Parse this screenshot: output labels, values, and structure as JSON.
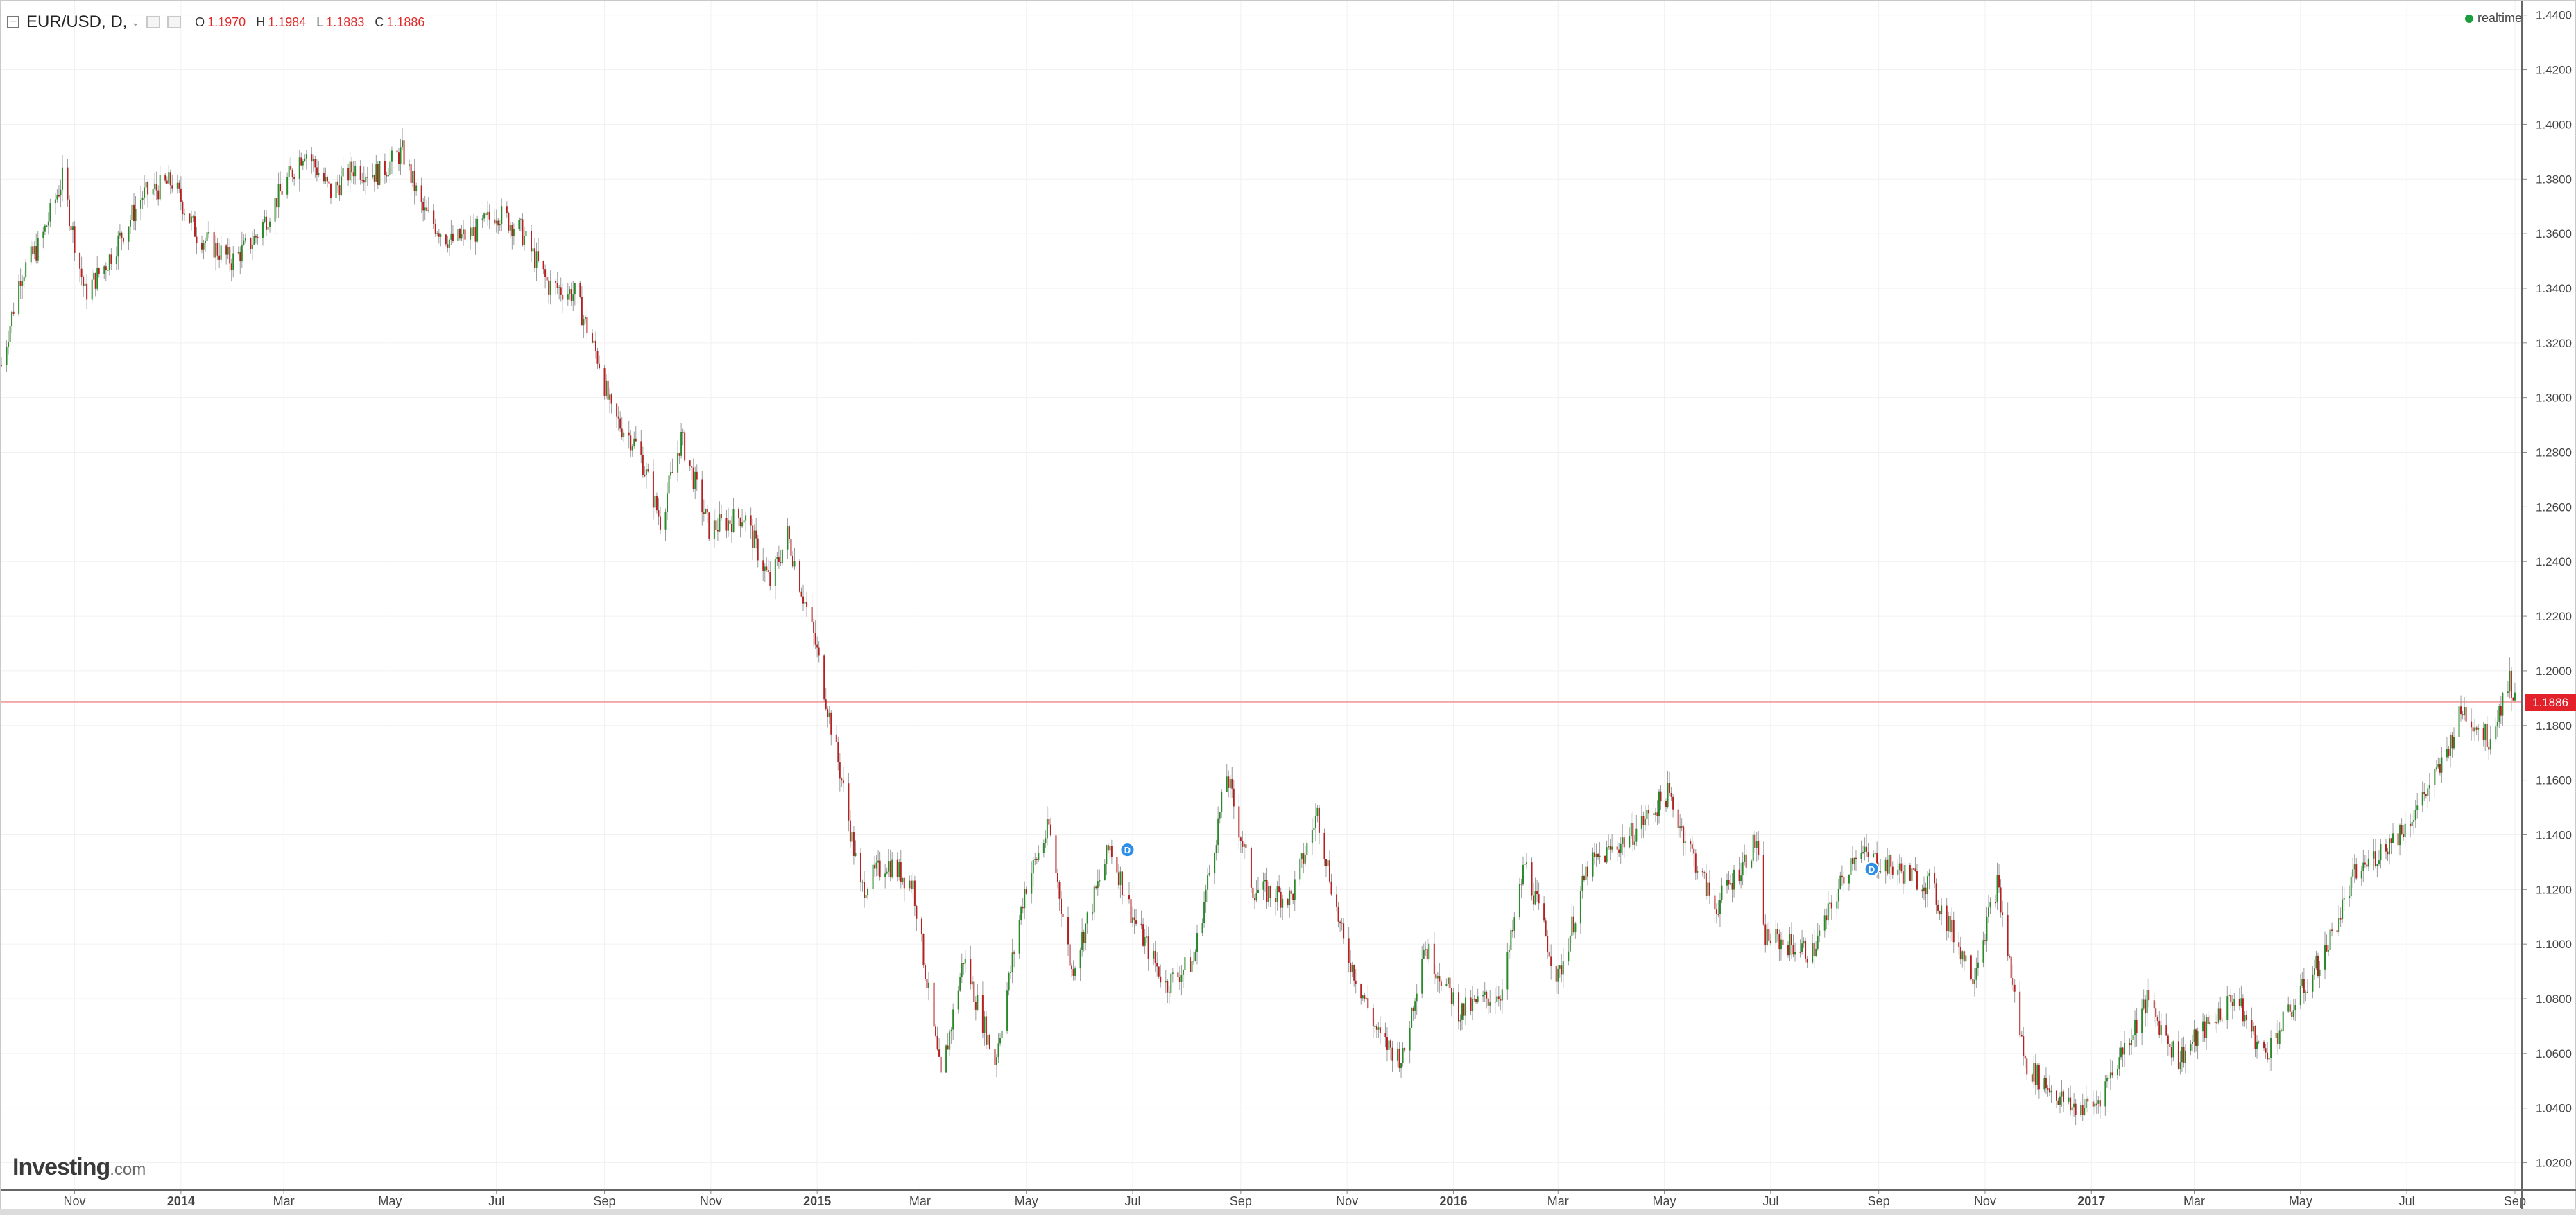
{
  "header": {
    "collapse_glyph": "−",
    "symbol": "EUR/USD, D,",
    "caret": "⌄",
    "ohlc": [
      {
        "key": "O",
        "value": "1.1970"
      },
      {
        "key": "H",
        "value": "1.1984"
      },
      {
        "key": "L",
        "value": "1.1883"
      },
      {
        "key": "C",
        "value": "1.1886"
      }
    ]
  },
  "realtime_label": "realtime",
  "logo": {
    "brand": "Investing",
    "tld": ".com"
  },
  "price_badge": "1.1886",
  "colors": {
    "up": "#2a8a2a",
    "down": "#b52020",
    "wick": "#9a9a9a",
    "price_line": "#f2a7a7",
    "price_badge": "#e3212b",
    "grid": "#f1f1f1",
    "marker": "#2f8fe8",
    "realtime_dot": "#1c9e3c"
  },
  "chart_data": {
    "type": "candlestick",
    "title": "EUR/USD, D,",
    "y_ticks": [
      "1.4400",
      "1.4200",
      "1.4000",
      "1.3800",
      "1.3600",
      "1.3400",
      "1.3200",
      "1.3000",
      "1.2800",
      "1.2600",
      "1.2400",
      "1.2200",
      "1.2000",
      "1.1800",
      "1.1600",
      "1.1400",
      "1.1200",
      "1.1000",
      "1.0800",
      "1.0600",
      "1.0400",
      "1.0200"
    ],
    "x_ticks": [
      "Nov",
      "2014",
      "Mar",
      "May",
      "Jul",
      "Sep",
      "Nov",
      "2015",
      "Mar",
      "May",
      "Jul",
      "Sep",
      "Nov",
      "2016",
      "Mar",
      "May",
      "Jul",
      "Sep",
      "Nov",
      "2017",
      "Mar",
      "May",
      "Jul",
      "Sep"
    ],
    "x_tick_dates": [
      "2013-11-01",
      "2014-01-01",
      "2014-03-01",
      "2014-05-01",
      "2014-07-01",
      "2014-09-01",
      "2014-11-01",
      "2015-01-01",
      "2015-03-01",
      "2015-05-01",
      "2015-07-01",
      "2015-09-01",
      "2015-11-01",
      "2016-01-01",
      "2016-03-01",
      "2016-05-01",
      "2016-07-01",
      "2016-09-01",
      "2016-11-01",
      "2017-01-01",
      "2017-03-01",
      "2017-05-01",
      "2017-07-01",
      "2017-09-01"
    ],
    "x_range": [
      "2013-09-20",
      "2017-09-05"
    ],
    "y_range": [
      1.01,
      1.445
    ],
    "last_price": 1.1886,
    "ohlc_last": {
      "open": 1.197,
      "high": 1.1984,
      "low": 1.1883,
      "close": 1.1886
    },
    "grid": true,
    "markers": [
      {
        "date": "2015-06-28",
        "price": 1.1345,
        "label": "D"
      },
      {
        "date": "2016-08-28",
        "price": 1.1275,
        "label": "D"
      }
    ],
    "close_series": [
      [
        "2013-09-20",
        1.312
      ],
      [
        "2013-10-01",
        1.345
      ],
      [
        "2013-10-12",
        1.356
      ],
      [
        "2013-10-25",
        1.38
      ],
      [
        "2013-11-07",
        1.338
      ],
      [
        "2013-11-20",
        1.35
      ],
      [
        "2013-12-10",
        1.374
      ],
      [
        "2013-12-27",
        1.379
      ],
      [
        "2014-01-10",
        1.36
      ],
      [
        "2014-01-30",
        1.35
      ],
      [
        "2014-02-12",
        1.358
      ],
      [
        "2014-02-28",
        1.376
      ],
      [
        "2014-03-13",
        1.391
      ],
      [
        "2014-03-28",
        1.375
      ],
      [
        "2014-04-10",
        1.384
      ],
      [
        "2014-04-25",
        1.382
      ],
      [
        "2014-05-08",
        1.39
      ],
      [
        "2014-05-20",
        1.368
      ],
      [
        "2014-06-05",
        1.357
      ],
      [
        "2014-06-20",
        1.361
      ],
      [
        "2014-07-01",
        1.368
      ],
      [
        "2014-07-15",
        1.361
      ],
      [
        "2014-07-31",
        1.341
      ],
      [
        "2014-08-15",
        1.338
      ],
      [
        "2014-08-29",
        1.313
      ],
      [
        "2014-09-05",
        1.294
      ],
      [
        "2014-09-20",
        1.282
      ],
      [
        "2014-10-03",
        1.255
      ],
      [
        "2014-10-15",
        1.285
      ],
      [
        "2014-10-31",
        1.252
      ],
      [
        "2014-11-20",
        1.257
      ],
      [
        "2014-12-05",
        1.232
      ],
      [
        "2014-12-15",
        1.25
      ],
      [
        "2014-12-31",
        1.21
      ],
      [
        "2015-01-15",
        1.16
      ],
      [
        "2015-01-26",
        1.12
      ],
      [
        "2015-02-10",
        1.13
      ],
      [
        "2015-02-25",
        1.122
      ],
      [
        "2015-03-13",
        1.05
      ],
      [
        "2015-03-26",
        1.095
      ],
      [
        "2015-04-13",
        1.057
      ],
      [
        "2015-04-30",
        1.12
      ],
      [
        "2015-05-14",
        1.143
      ],
      [
        "2015-05-27",
        1.09
      ],
      [
        "2015-06-18",
        1.136
      ],
      [
        "2015-07-01",
        1.11
      ],
      [
        "2015-07-20",
        1.085
      ],
      [
        "2015-08-05",
        1.094
      ],
      [
        "2015-08-24",
        1.162
      ],
      [
        "2015-09-08",
        1.12
      ],
      [
        "2015-09-30",
        1.117
      ],
      [
        "2015-10-15",
        1.148
      ],
      [
        "2015-10-30",
        1.1
      ],
      [
        "2015-11-20",
        1.065
      ],
      [
        "2015-12-03",
        1.058
      ],
      [
        "2015-12-15",
        1.1
      ],
      [
        "2016-01-05",
        1.075
      ],
      [
        "2016-01-29",
        1.083
      ],
      [
        "2016-02-11",
        1.13
      ],
      [
        "2016-03-01",
        1.087
      ],
      [
        "2016-03-18",
        1.128
      ],
      [
        "2016-04-12",
        1.14
      ],
      [
        "2016-05-03",
        1.155
      ],
      [
        "2016-05-30",
        1.113
      ],
      [
        "2016-06-23",
        1.138
      ],
      [
        "2016-06-27",
        1.103
      ],
      [
        "2016-07-25",
        1.097
      ],
      [
        "2016-08-18",
        1.134
      ],
      [
        "2016-09-30",
        1.122
      ],
      [
        "2016-10-25",
        1.089
      ],
      [
        "2016-11-08",
        1.122
      ],
      [
        "2016-11-24",
        1.056
      ],
      [
        "2016-12-20",
        1.04
      ],
      [
        "2017-01-03",
        1.041
      ],
      [
        "2017-02-02",
        1.079
      ],
      [
        "2017-02-20",
        1.058
      ],
      [
        "2017-03-24",
        1.081
      ],
      [
        "2017-04-10",
        1.059
      ],
      [
        "2017-05-15",
        1.097
      ],
      [
        "2017-06-01",
        1.125
      ],
      [
        "2017-06-30",
        1.143
      ],
      [
        "2017-07-20",
        1.164
      ],
      [
        "2017-08-02",
        1.186
      ],
      [
        "2017-08-17",
        1.175
      ],
      [
        "2017-08-29",
        1.197
      ],
      [
        "2017-09-01",
        1.1886
      ]
    ]
  }
}
